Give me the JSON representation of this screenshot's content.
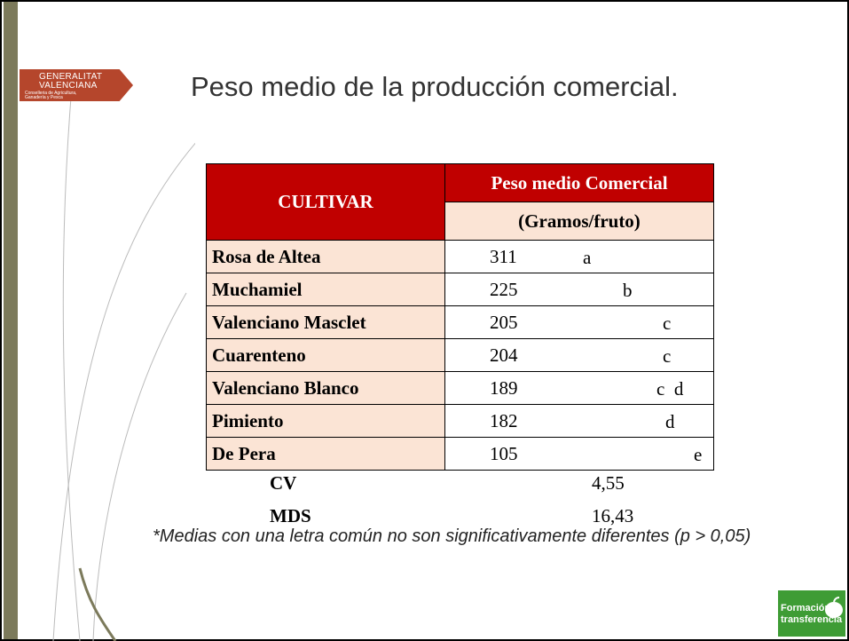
{
  "logo": {
    "line1": "GENERALITAT",
    "line2": "VALENCIANA",
    "line3": "Conselleria de Agricultura,",
    "line4": "Ganadería y Pesca"
  },
  "title": "Peso medio de la producción comercial.",
  "table": {
    "header": {
      "cultivar": "CULTIVAR",
      "measure": "Peso medio Comercial",
      "unit": "(Gramos/fruto)"
    },
    "rows": [
      [
        "Rosa de Altea",
        311,
        "a"
      ],
      [
        "Muchamiel",
        225,
        "b"
      ],
      [
        "Valenciano Masclet",
        205,
        "c"
      ],
      [
        "Cuarenteno",
        204,
        "c"
      ],
      [
        "Valenciano Blanco",
        189,
        "c  d"
      ],
      [
        "Pimiento",
        182,
        "d"
      ],
      [
        "De Pera",
        105,
        "e"
      ]
    ],
    "stats": [
      [
        "CV",
        "4,55"
      ],
      [
        "MDS",
        "16,43"
      ]
    ]
  },
  "footnote": "*Medias con una letra común no son significativamente diferentes (p > 0,05)",
  "footer_logo": {
    "line1": "Formación y",
    "line2": "transferencia"
  }
}
